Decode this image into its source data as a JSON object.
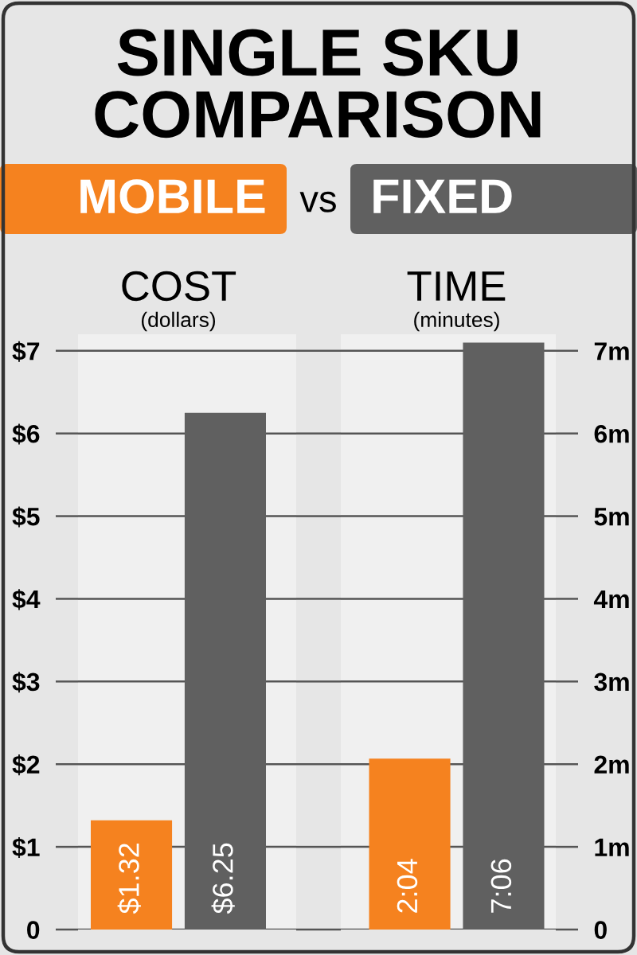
{
  "chart_data": [
    {
      "type": "other",
      "title": "SINGLE SKU\nCOMPARISON",
      "annotations": [
        "vs"
      ]
    },
    {
      "type": "bar",
      "title": "COST",
      "subtitle": "(dollars)",
      "categories": [
        null
      ],
      "series": [
        {
          "name": "MOBILE",
          "color": "#f5821f",
          "values": [
            1.32
          ],
          "value_labels": [
            "$1.32"
          ]
        },
        {
          "name": "FIXED",
          "color": "#606060",
          "values": [
            6.25
          ],
          "value_labels": [
            "$6.25"
          ]
        }
      ],
      "ylim": [
        0,
        7.2
      ],
      "yticks": [
        0,
        {
          "value": 1,
          "label": "$1"
        },
        {
          "value": 2,
          "label": "$2"
        },
        {
          "value": 3,
          "label": "$3"
        },
        {
          "value": 4,
          "label": "$4"
        },
        {
          "value": 5,
          "label": "$5"
        },
        {
          "value": 6,
          "label": "$6"
        },
        {
          "value": 7,
          "label": "$7"
        }
      ],
      "grid": "y",
      "legend": "top"
    },
    {
      "type": "bar",
      "title": "TIME",
      "subtitle": "(minutes)",
      "categories": [
        null
      ],
      "series": [
        {
          "color": "#f5821f",
          "values": [
            2.067
          ],
          "value_labels": [
            "2:04"
          ]
        },
        {
          "color": "#606060",
          "values": [
            7.1
          ],
          "value_labels": [
            "7:06"
          ]
        }
      ],
      "ylim": [
        0,
        7.2
      ],
      "yticks": [
        0,
        {
          "value": 1,
          "label": "1m"
        },
        {
          "value": 2,
          "label": "2m"
        },
        {
          "value": 3,
          "label": "3m"
        },
        {
          "value": 4,
          "label": "4m"
        },
        {
          "value": 5,
          "label": "5m"
        },
        {
          "value": 6,
          "label": "6m"
        },
        {
          "value": 7,
          "label": "7m"
        }
      ],
      "grid": "y"
    }
  ]
}
